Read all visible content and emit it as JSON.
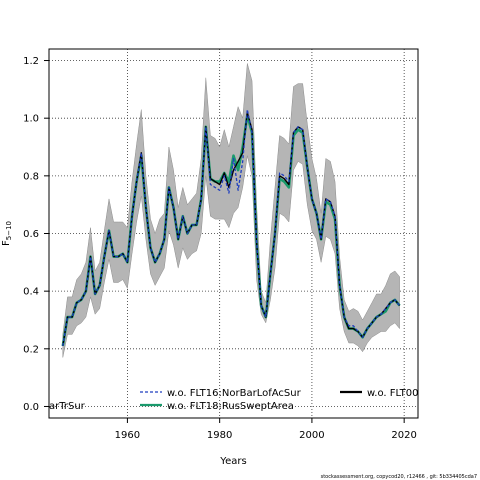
{
  "chart_data": {
    "type": "line",
    "xlabel": "Years",
    "ylabel": "F",
    "ylabel_subscript": "5−10",
    "xlim": [
      1943,
      2023
    ],
    "ylim": [
      -0.04,
      1.24
    ],
    "xticks": [
      1960,
      1980,
      2000,
      2020
    ],
    "yticks": [
      0.0,
      0.2,
      0.4,
      0.6,
      0.8,
      1.0,
      1.2
    ],
    "grid": true,
    "legend_location": "bottom",
    "x": [
      1946,
      1947,
      1948,
      1949,
      1950,
      1951,
      1952,
      1953,
      1954,
      1955,
      1956,
      1957,
      1958,
      1959,
      1960,
      1961,
      1962,
      1963,
      1964,
      1965,
      1966,
      1967,
      1968,
      1969,
      1970,
      1971,
      1972,
      1973,
      1974,
      1975,
      1976,
      1977,
      1978,
      1979,
      1980,
      1981,
      1982,
      1983,
      1984,
      1985,
      1986,
      1987,
      1988,
      1989,
      1990,
      1991,
      1992,
      1993,
      1994,
      1995,
      1996,
      1997,
      1998,
      1999,
      2000,
      2001,
      2002,
      2003,
      2004,
      2005,
      2006,
      2007,
      2008,
      2009,
      2010,
      2011,
      2012,
      2013,
      2014,
      2015,
      2016,
      2017,
      2018,
      2019
    ],
    "band_lower": [
      0.17,
      0.25,
      0.25,
      0.28,
      0.29,
      0.31,
      0.38,
      0.32,
      0.34,
      0.43,
      0.51,
      0.43,
      0.43,
      0.44,
      0.41,
      0.53,
      0.64,
      0.73,
      0.58,
      0.46,
      0.42,
      0.45,
      0.48,
      0.61,
      0.56,
      0.48,
      0.55,
      0.51,
      0.53,
      0.54,
      0.6,
      0.8,
      0.66,
      0.65,
      0.65,
      0.65,
      0.62,
      0.67,
      0.69,
      0.76,
      0.87,
      0.8,
      0.44,
      0.32,
      0.29,
      0.37,
      0.48,
      0.67,
      0.66,
      0.64,
      0.82,
      0.85,
      0.84,
      0.7,
      0.61,
      0.58,
      0.5,
      0.59,
      0.58,
      0.53,
      0.34,
      0.26,
      0.22,
      0.22,
      0.21,
      0.19,
      0.22,
      0.24,
      0.25,
      0.26,
      0.26,
      0.28,
      0.29,
      0.27
    ],
    "band_upper": [
      0.25,
      0.38,
      0.38,
      0.44,
      0.46,
      0.5,
      0.62,
      0.47,
      0.5,
      0.61,
      0.72,
      0.64,
      0.64,
      0.64,
      0.62,
      0.78,
      0.91,
      1.03,
      0.8,
      0.65,
      0.6,
      0.65,
      0.67,
      0.9,
      0.82,
      0.69,
      0.76,
      0.7,
      0.72,
      0.74,
      0.86,
      1.14,
      0.94,
      0.93,
      0.9,
      0.96,
      0.9,
      0.97,
      1.04,
      1.0,
      1.19,
      1.13,
      0.7,
      0.4,
      0.36,
      0.58,
      0.76,
      0.94,
      0.93,
      0.91,
      1.11,
      1.12,
      1.12,
      0.98,
      0.86,
      0.79,
      0.67,
      0.86,
      0.85,
      0.78,
      0.52,
      0.37,
      0.33,
      0.34,
      0.33,
      0.3,
      0.33,
      0.36,
      0.39,
      0.39,
      0.42,
      0.46,
      0.47,
      0.45
    ],
    "series": [
      {
        "name": "w.o. FLT00",
        "color": "#000000",
        "values": [
          0.21,
          0.31,
          0.31,
          0.36,
          0.37,
          0.4,
          0.52,
          0.39,
          0.42,
          0.52,
          0.61,
          0.52,
          0.52,
          0.53,
          0.5,
          0.66,
          0.78,
          0.88,
          0.69,
          0.55,
          0.5,
          0.53,
          0.58,
          0.76,
          0.69,
          0.58,
          0.66,
          0.6,
          0.63,
          0.63,
          0.72,
          0.97,
          0.79,
          0.78,
          0.77,
          0.81,
          0.76,
          0.82,
          0.85,
          0.88,
          1.02,
          0.96,
          0.57,
          0.35,
          0.31,
          0.46,
          0.6,
          0.8,
          0.79,
          0.77,
          0.95,
          0.97,
          0.96,
          0.83,
          0.72,
          0.67,
          0.58,
          0.72,
          0.71,
          0.66,
          0.42,
          0.31,
          0.27,
          0.27,
          0.26,
          0.24,
          0.27,
          0.29,
          0.31,
          0.32,
          0.34,
          0.36,
          0.37,
          0.35
        ]
      },
      {
        "name": "w.o. FLT16:NorBarLofAcSur",
        "color": "#1f3fbf",
        "dashed": true,
        "values": [
          0.21,
          0.31,
          0.31,
          0.36,
          0.37,
          0.4,
          0.52,
          0.39,
          0.42,
          0.52,
          0.61,
          0.52,
          0.52,
          0.53,
          0.5,
          0.66,
          0.78,
          0.88,
          0.69,
          0.55,
          0.5,
          0.53,
          0.58,
          0.76,
          0.69,
          0.58,
          0.66,
          0.6,
          0.63,
          0.63,
          0.72,
          0.97,
          0.77,
          0.76,
          0.75,
          0.8,
          0.74,
          0.86,
          0.75,
          0.85,
          1.03,
          0.95,
          0.57,
          0.35,
          0.31,
          0.46,
          0.6,
          0.81,
          0.8,
          0.78,
          0.95,
          0.97,
          0.96,
          0.83,
          0.72,
          0.67,
          0.58,
          0.72,
          0.71,
          0.66,
          0.42,
          0.31,
          0.28,
          0.28,
          0.26,
          0.24,
          0.27,
          0.29,
          0.31,
          0.32,
          0.34,
          0.36,
          0.37,
          0.35
        ]
      },
      {
        "name": "w.o. FLT18:RusSweptArea",
        "color": "#1a9a6c",
        "values": [
          0.21,
          0.31,
          0.31,
          0.36,
          0.37,
          0.4,
          0.52,
          0.39,
          0.42,
          0.52,
          0.61,
          0.52,
          0.52,
          0.53,
          0.5,
          0.66,
          0.78,
          0.87,
          0.69,
          0.55,
          0.5,
          0.53,
          0.58,
          0.76,
          0.69,
          0.58,
          0.66,
          0.6,
          0.63,
          0.63,
          0.72,
          0.97,
          0.79,
          0.78,
          0.78,
          0.81,
          0.78,
          0.87,
          0.82,
          0.9,
          1.01,
          0.95,
          0.57,
          0.35,
          0.31,
          0.46,
          0.6,
          0.79,
          0.78,
          0.76,
          0.94,
          0.96,
          0.95,
          0.83,
          0.72,
          0.67,
          0.58,
          0.71,
          0.7,
          0.65,
          0.42,
          0.31,
          0.27,
          0.27,
          0.26,
          0.24,
          0.27,
          0.29,
          0.31,
          0.32,
          0.33,
          0.36,
          0.37,
          0.35
        ]
      }
    ],
    "legend_entries": [
      {
        "label": "w.o. FLT16:NorBarLofAcSur",
        "style": "dashed",
        "color": "#1f3fbf"
      },
      {
        "label": "w.o. FLT00",
        "style": "solid",
        "color": "#000000"
      },
      {
        "label": "w.o. FLT18:RusSweptArea",
        "style": "solid",
        "color": "#1a9a6c"
      },
      {
        "label": "arTrSur",
        "style": "text-only",
        "color": "#000000"
      }
    ]
  },
  "footer": "stockassessment.org, copycod20, r12466 , git: 5b334405cda7",
  "colors": {
    "band": "#b5b5b5",
    "band_edge": "#8c8c8c",
    "grid": "#333333"
  }
}
